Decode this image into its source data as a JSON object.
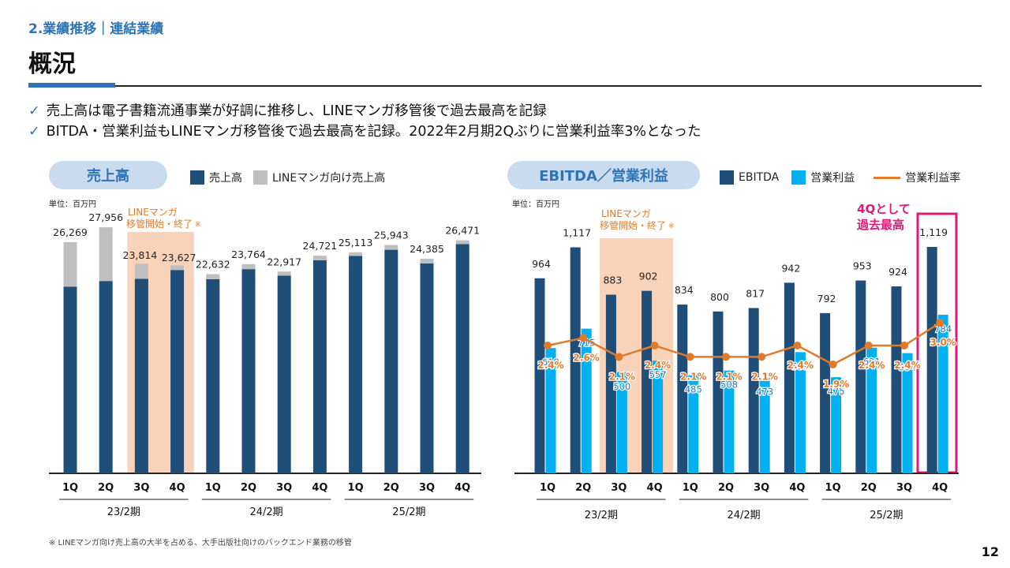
{
  "header": {
    "section": "2.業績推移｜連結業績",
    "title": "概況"
  },
  "bullets": [
    "売上高は電子書籍流通事業が好調に推移し、LINEマンガ移管後で過去最高を記録",
    "BITDA・営業利益もLINEマンガ移管後で過去最高を記録。2022年2月期2Qぶりに営業利益率3%となった"
  ],
  "check_glyph": "✓",
  "left_panel": {
    "pill": "売上高",
    "legend": [
      {
        "label": "売上高",
        "color": "#1f4e79"
      },
      {
        "label": "LINEマンガ向け売上高",
        "color": "#bfbfbf"
      }
    ],
    "unit": "単位：百万円",
    "annotation_line1": "LINEマンガ",
    "annotation_line2": "移管開始・終了",
    "annotation_mark": "※"
  },
  "right_panel": {
    "pill": "EBITDA／営業利益",
    "legend": [
      {
        "label": "EBITDA",
        "color": "#1f4e79"
      },
      {
        "label": "営業利益",
        "color": "#00b0f0"
      },
      {
        "label": "営業利益率",
        "color": "#e07b2b"
      }
    ],
    "unit": "単位：百万円",
    "annotation_line1": "LINEマンガ",
    "annotation_line2": "移管開始・終了",
    "annotation_mark": "※",
    "record_line1": "4Qとして",
    "record_line2": "過去最高"
  },
  "chart_data": [
    {
      "type": "bar",
      "title": "売上高",
      "ylabel": "単位：百万円",
      "categories": [
        "1Q",
        "2Q",
        "3Q",
        "4Q",
        "1Q",
        "2Q",
        "3Q",
        "4Q",
        "1Q",
        "2Q",
        "3Q",
        "4Q"
      ],
      "groups": [
        "23/2期",
        "24/2期",
        "25/2期"
      ],
      "stacked": true,
      "ylim": [
        0,
        30000
      ],
      "total_labels": [
        "26,269",
        "27,956",
        "23,814",
        "23,627",
        "22,632",
        "23,764",
        "22,917",
        "24,721",
        "25,113",
        "25,943",
        "24,385",
        "26,471"
      ],
      "series": [
        {
          "name": "売上高",
          "values": [
            21200,
            21850,
            22100,
            23100,
            22050,
            23200,
            22450,
            24200,
            24700,
            25400,
            23850,
            26050
          ]
        },
        {
          "name": "LINEマンガ向け売上高",
          "values": [
            5069,
            6106,
            1714,
            527,
            582,
            564,
            467,
            521,
            413,
            543,
            535,
            421
          ]
        }
      ]
    },
    {
      "type": "bar+line",
      "title": "EBITDA／営業利益",
      "ylabel": "単位：百万円",
      "categories": [
        "1Q",
        "2Q",
        "3Q",
        "4Q",
        "1Q",
        "2Q",
        "3Q",
        "4Q",
        "1Q",
        "2Q",
        "3Q",
        "4Q"
      ],
      "groups": [
        "23/2期",
        "24/2期",
        "25/2期"
      ],
      "ylim": [
        0,
        1300
      ],
      "series": [
        {
          "name": "EBITDA",
          "values": [
            964,
            1117,
            883,
            902,
            834,
            800,
            817,
            942,
            792,
            953,
            924,
            1119
          ],
          "labels": [
            "964",
            "1,117",
            "883",
            "902",
            "834",
            "800",
            "817",
            "942",
            "792",
            "953",
            "924",
            "1,119"
          ]
        },
        {
          "name": "営業利益",
          "values": [
            619,
            715,
            500,
            557,
            485,
            508,
            473,
            599,
            475,
            621,
            594,
            784
          ],
          "labels": [
            "619",
            "715",
            "500",
            "557",
            "485",
            "508",
            "473",
            "599",
            "475",
            "621",
            "594",
            "784"
          ]
        },
        {
          "name": "営業利益率",
          "axis": "secondary",
          "values": [
            2.4,
            2.6,
            2.1,
            2.4,
            2.1,
            2.1,
            2.1,
            2.4,
            1.9,
            2.4,
            2.4,
            3.0
          ],
          "labels": [
            "2.4%",
            "2.6%",
            "2.1%",
            "2.4%",
            "2.1%",
            "2.1%",
            "2.1%",
            "2.4%",
            "1.9%",
            "2.4%",
            "2.4%",
            "3.0%"
          ]
        }
      ]
    }
  ],
  "footnote": "※ LINEマンガ向け売上高の大半を占める、大手出版社向けのバックエンド業務の移管",
  "page_number": "12"
}
